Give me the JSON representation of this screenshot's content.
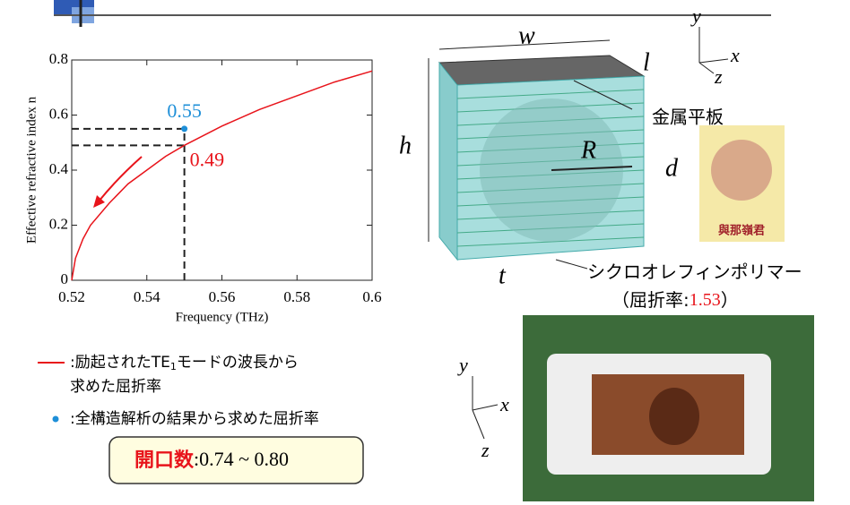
{
  "chart_data": {
    "type": "line",
    "x_label": "Frequency (THz)",
    "y_label": "Effective refractive index n",
    "xlim": [
      0.52,
      0.6
    ],
    "ylim": [
      0,
      0.8
    ],
    "xticks": [
      0.52,
      0.54,
      0.56,
      0.58,
      0.6
    ],
    "yticks": [
      0,
      0.2,
      0.4,
      0.6,
      0.8
    ],
    "series": [
      {
        "color": "#e8141b",
        "x": [
          0.52,
          0.521,
          0.523,
          0.525,
          0.53,
          0.535,
          0.54,
          0.545,
          0.55,
          0.56,
          0.57,
          0.58,
          0.59,
          0.6
        ],
        "values": [
          0,
          0.08,
          0.15,
          0.2,
          0.28,
          0.35,
          0.4,
          0.45,
          0.49,
          0.56,
          0.62,
          0.67,
          0.72,
          0.76
        ]
      }
    ],
    "points": [
      {
        "x": 0.55,
        "y": 0.55,
        "color": "#1e8fd8"
      }
    ],
    "annotation": {
      "x": 0.55,
      "y": 0.49,
      "color": "#e8141b"
    }
  },
  "legend": {
    "line_text": ":励起されたTE",
    "line_sub": "1",
    "line_after": "モードの波長から",
    "line_text2": "求めた屈折率",
    "dot_text": ":全構造解析の結果から求めた屈折率"
  },
  "aperture": {
    "label": "開口数",
    "value": ":0.74 ~ 0.80"
  },
  "diagram": {
    "w": "w",
    "l": "l",
    "h": "h",
    "R": "R",
    "d": "d",
    "t": "t",
    "plate": "金属平板",
    "polymer": "シクロオレフィンポリマー",
    "index_open": "（屈折率:",
    "index_value": "1.53",
    "index_close": "）",
    "axis_y": "y",
    "axis_x": "x",
    "axis_z": "z",
    "person": "與那嶺君"
  },
  "photo_axes": {
    "y": "y",
    "x": "x",
    "z": "z"
  }
}
